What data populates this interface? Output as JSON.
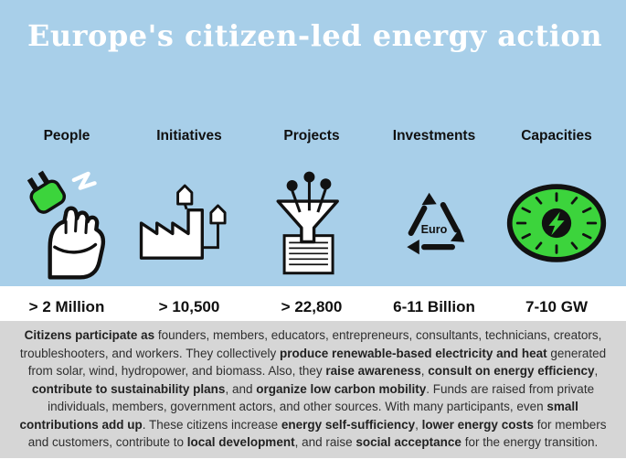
{
  "title": "Europe's citizen-led energy action",
  "columns": [
    {
      "label": "People",
      "value": "> 2 Million",
      "icon": "fist-plug-icon"
    },
    {
      "label": "Initiatives",
      "value": "> 10,500",
      "icon": "factory-network-icon"
    },
    {
      "label": "Projects",
      "value": "> 22,800",
      "icon": "funnel-documents-icon"
    },
    {
      "label": "Investments",
      "value": "6-11 Billion",
      "icon": "recycle-euro-icon",
      "icon_text": "Euro"
    },
    {
      "label": "Capacities",
      "value": "7-10 GW",
      "icon": "gauge-lightning-icon"
    }
  ],
  "paragraph": {
    "segments": [
      {
        "text": "Citizens participate as ",
        "bold": true
      },
      {
        "text": "founders, members, educators, entrepreneurs, consultants, technicians, creators, troubleshooters, and workers. They collectively ",
        "bold": false
      },
      {
        "text": "produce renewable-based electricity and heat",
        "bold": true
      },
      {
        "text": " generated from solar, wind, hydropower, and biomass. Also, they ",
        "bold": false
      },
      {
        "text": "raise awareness",
        "bold": true
      },
      {
        "text": ", ",
        "bold": false
      },
      {
        "text": "consult on energy efficiency",
        "bold": true
      },
      {
        "text": ", ",
        "bold": false
      },
      {
        "text": "contribute to sustainability plans",
        "bold": true
      },
      {
        "text": ", and ",
        "bold": false
      },
      {
        "text": "organize low carbon mobility",
        "bold": true
      },
      {
        "text": ". Funds are raised from private individuals, members, government actors, and other sources. With many participants, even ",
        "bold": false
      },
      {
        "text": "small contributions add up",
        "bold": true
      },
      {
        "text": ". These citizens increase ",
        "bold": false
      },
      {
        "text": "energy self-sufficiency",
        "bold": true
      },
      {
        "text": ", ",
        "bold": false
      },
      {
        "text": "lower energy costs",
        "bold": true
      },
      {
        "text": " for members and customers, contribute to ",
        "bold": false
      },
      {
        "text": "local development",
        "bold": true
      },
      {
        "text": ", and raise ",
        "bold": false
      },
      {
        "text": "social acceptance",
        "bold": true
      },
      {
        "text": " for the energy transition.",
        "bold": false
      }
    ]
  },
  "chart_data": {
    "type": "table",
    "title": "Europe's citizen-led energy action",
    "categories": [
      "People",
      "Initiatives",
      "Projects",
      "Investments",
      "Capacities"
    ],
    "values": [
      "> 2 Million",
      "> 10,500",
      "> 22,800",
      "6-11 Billion",
      "7-10 GW"
    ]
  },
  "colors": {
    "background_blue": "#a8cfe9",
    "accent_green": "#3cd43c",
    "paragraph_background": "#d6d6d6",
    "title_color": "#ffffff",
    "line_art": "#111111"
  }
}
